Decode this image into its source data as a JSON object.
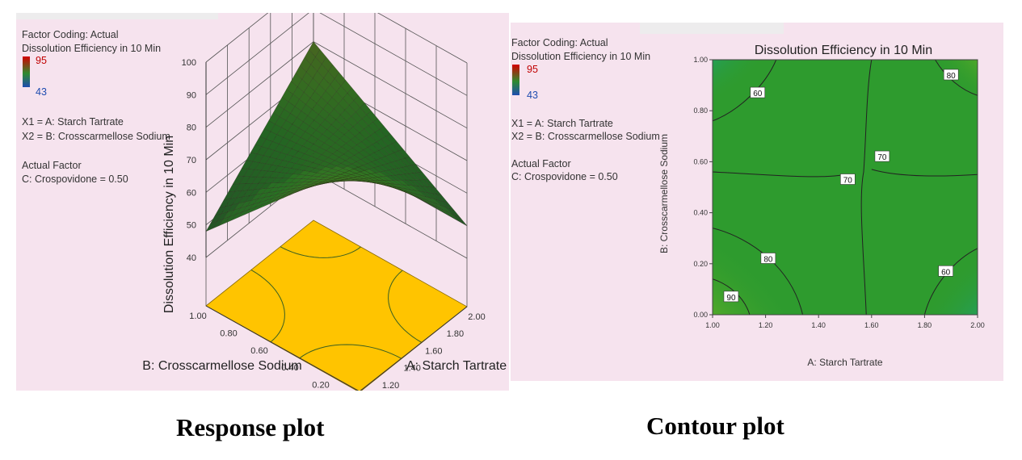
{
  "response_panel": {
    "factor_coding": "Factor Coding: Actual",
    "response_title": "Dissolution Efficiency in 10 Min",
    "legend_high": "95",
    "legend_low": "43",
    "x1": "X1 = A: Starch Tartrate",
    "x2": "X2 = B: Crosscarmellose Sodium",
    "actual_factor": "Actual Factor",
    "actual_factor_value": "C: Crospovidone = 0.50",
    "caption": "Response plot"
  },
  "contour_panel": {
    "factor_coding": "Factor Coding: Actual",
    "response_title": "Dissolution Efficiency in 10 Min",
    "legend_high": "95",
    "legend_low": "43",
    "x1": "X1 = A: Starch Tartrate",
    "x2": "X2 = B: Crosscarmellose Sodium",
    "actual_factor": "Actual Factor",
    "actual_factor_value": "C: Crospovidone = 0.50",
    "caption": "Contour plot"
  },
  "colors": {
    "panel_bg": "#f6e3ee",
    "high": "#d40000",
    "mid": "#2e9b2e",
    "low": "#1f5bd0",
    "floor": "#ffc400"
  },
  "chart_data": [
    {
      "type": "surface",
      "zlabel": "Dissolution Efficiency in 10 Min",
      "xlabel": "A: Starch Tartrate",
      "ylabel": "B: Crosscarmellose Sodium",
      "x_ticks": [
        "1.00",
        "1.20",
        "1.40",
        "1.60",
        "1.80",
        "2.00"
      ],
      "y_ticks": [
        "0.00",
        "0.20",
        "0.40",
        "0.60",
        "0.80",
        "1.00"
      ],
      "z_ticks": [
        "40",
        "50",
        "60",
        "70",
        "80",
        "90",
        "100"
      ],
      "xlim": [
        1.0,
        2.0
      ],
      "ylim": [
        0.0,
        1.0
      ],
      "zlim": [
        40,
        100
      ],
      "corner_values": [
        {
          "x": 1.0,
          "y": 0.0,
          "z": 95
        },
        {
          "x": 2.0,
          "y": 0.0,
          "z": 50
        },
        {
          "x": 1.0,
          "y": 1.0,
          "z": 48
        },
        {
          "x": 2.0,
          "y": 1.0,
          "z": 80
        }
      ],
      "center_value": {
        "x": 1.5,
        "y": 0.5,
        "z": 70
      }
    },
    {
      "type": "contour",
      "title": "Dissolution Efficiency in 10 Min",
      "xlabel": "A: Starch Tartrate",
      "ylabel": "B: Crosscarmellose Sodium",
      "x_ticks": [
        "1.00",
        "1.20",
        "1.40",
        "1.60",
        "1.80",
        "2.00"
      ],
      "y_ticks": [
        "0.00",
        "0.20",
        "0.40",
        "0.60",
        "0.80",
        "1.00"
      ],
      "xlim": [
        1.0,
        2.0
      ],
      "ylim": [
        0.0,
        1.0
      ],
      "contour_labels": [
        {
          "text": "90",
          "x": 1.07,
          "y": 0.07
        },
        {
          "text": "80",
          "x": 1.21,
          "y": 0.22
        },
        {
          "text": "70",
          "x": 1.51,
          "y": 0.53
        },
        {
          "text": "70",
          "x": 1.64,
          "y": 0.62
        },
        {
          "text": "60",
          "x": 1.17,
          "y": 0.87
        },
        {
          "text": "60",
          "x": 1.88,
          "y": 0.17
        },
        {
          "text": "80",
          "x": 1.9,
          "y": 0.94
        }
      ],
      "levels": [
        60,
        70,
        80,
        90
      ]
    }
  ]
}
